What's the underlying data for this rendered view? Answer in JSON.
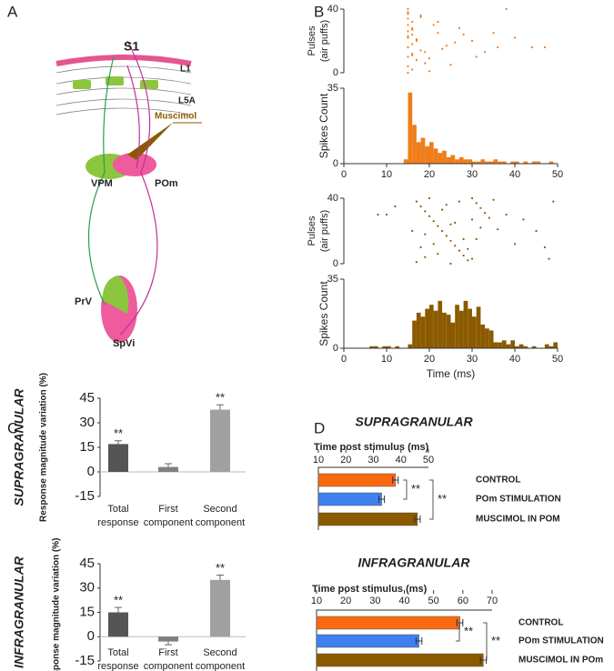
{
  "panel_labels": [
    "A",
    "B",
    "C",
    "D"
  ],
  "diagram": {
    "title": "S1",
    "layers": [
      "L1",
      "L5A"
    ],
    "drug": "Muscimol",
    "nuclei": [
      "VPM",
      "POm",
      "PrV",
      "SpVi"
    ]
  },
  "chart_data": [
    {
      "type": "scatter",
      "ylabel": [
        "Pulses",
        "(air puffs)"
      ],
      "x": [
        15,
        15,
        15,
        16,
        15,
        16,
        15,
        16,
        15,
        17,
        16,
        15,
        18,
        16,
        15,
        17,
        19,
        15,
        16,
        20,
        15,
        18,
        21,
        16,
        22,
        15,
        17,
        24,
        19,
        26,
        16,
        23,
        28,
        20,
        30,
        25,
        33,
        18,
        36,
        27,
        40,
        22,
        44,
        31,
        47,
        35,
        38,
        15
      ],
      "y": [
        40,
        37,
        34,
        32,
        30,
        28,
        26,
        24,
        22,
        20,
        18,
        16,
        14,
        12,
        10,
        8,
        6,
        4,
        2,
        1,
        38,
        35,
        30,
        27,
        25,
        23,
        21,
        17,
        13,
        19,
        11,
        15,
        24,
        9,
        20,
        5,
        13,
        36,
        16,
        28,
        22,
        32,
        16,
        10,
        16,
        25,
        40,
        0
      ],
      "color": "#f07d1a",
      "xlim": [
        0,
        50
      ],
      "ylim": [
        0,
        40
      ],
      "yticks": [
        0,
        40
      ]
    },
    {
      "type": "histogram",
      "ylabel": "Spikes Count",
      "bins": [
        0,
        1,
        2,
        3,
        4,
        5,
        6,
        7,
        8,
        9,
        10,
        11,
        12,
        13,
        14,
        15,
        16,
        17,
        18,
        19,
        20,
        21,
        22,
        23,
        24,
        25,
        26,
        27,
        28,
        29,
        30,
        31,
        32,
        33,
        34,
        35,
        36,
        37,
        38,
        39,
        40,
        41,
        42,
        43,
        44,
        45,
        46,
        47,
        48,
        49,
        50
      ],
      "counts": [
        0,
        0,
        0,
        0,
        0,
        0,
        0,
        0,
        0,
        0,
        0,
        0,
        0,
        0,
        2,
        33,
        18,
        10,
        12,
        8,
        10,
        7,
        5,
        6,
        3,
        4,
        2,
        3,
        2,
        2,
        1,
        1,
        2,
        1,
        1,
        2,
        1,
        1,
        0,
        1,
        1,
        0,
        1,
        0,
        1,
        1,
        0,
        0,
        1,
        0
      ],
      "color": "#f07d1a",
      "xlim": [
        0,
        50
      ],
      "ylim": [
        0,
        35
      ],
      "yticks": [
        0,
        35
      ],
      "xticks": [
        0,
        10,
        20,
        30,
        40,
        50
      ]
    },
    {
      "type": "scatter",
      "ylabel": [
        "Pulses",
        "(air puffs)"
      ],
      "x": [
        8,
        10,
        17,
        18,
        19,
        20,
        21,
        22,
        23,
        24,
        25,
        26,
        27,
        28,
        29,
        30,
        31,
        32,
        33,
        34,
        16,
        18,
        20,
        22,
        24,
        26,
        28,
        30,
        32,
        35,
        17,
        19,
        21,
        23,
        25,
        27,
        29,
        31,
        36,
        38,
        40,
        42,
        45,
        47,
        49,
        48,
        12,
        19,
        25,
        30
      ],
      "y": [
        30,
        30,
        38,
        35,
        32,
        29,
        26,
        23,
        20,
        17,
        14,
        11,
        8,
        5,
        2,
        40,
        37,
        34,
        31,
        28,
        20,
        10,
        40,
        6,
        36,
        25,
        15,
        3,
        22,
        39,
        1,
        18,
        12,
        33,
        24,
        38,
        9,
        15,
        21,
        30,
        12,
        27,
        20,
        10,
        38,
        3,
        35,
        4,
        0,
        27
      ],
      "color": "#8b5a00",
      "xlim": [
        0,
        50
      ],
      "ylim": [
        0,
        40
      ],
      "yticks": [
        0,
        40
      ]
    },
    {
      "type": "histogram",
      "ylabel": "Spikes Count",
      "xlabel": "Time (ms)",
      "bins": [
        0,
        1,
        2,
        3,
        4,
        5,
        6,
        7,
        8,
        9,
        10,
        11,
        12,
        13,
        14,
        15,
        16,
        17,
        18,
        19,
        20,
        21,
        22,
        23,
        24,
        25,
        26,
        27,
        28,
        29,
        30,
        31,
        32,
        33,
        34,
        35,
        36,
        37,
        38,
        39,
        40,
        41,
        42,
        43,
        44,
        45,
        46,
        47,
        48,
        49,
        50
      ],
      "counts": [
        0,
        0,
        0,
        0,
        0,
        0,
        1,
        1,
        0,
        1,
        1,
        0,
        1,
        0,
        0,
        2,
        14,
        18,
        16,
        20,
        22,
        19,
        24,
        18,
        17,
        13,
        22,
        19,
        24,
        20,
        16,
        21,
        12,
        10,
        9,
        3,
        3,
        4,
        2,
        4,
        1,
        2,
        1,
        0,
        1,
        0,
        0,
        2,
        1,
        3
      ],
      "color": "#8b5a00",
      "xlim": [
        0,
        50
      ],
      "ylim": [
        0,
        35
      ],
      "yticks": [
        0,
        35
      ],
      "xticks": [
        0,
        10,
        20,
        30,
        40,
        50
      ]
    },
    {
      "type": "bar",
      "title": "SUPRAGRANULAR",
      "ylabel": "Response magnitude variation (%)",
      "categories": [
        [
          "Total",
          "response"
        ],
        [
          "First",
          "component"
        ],
        [
          "Second",
          "component"
        ]
      ],
      "values": [
        17,
        3,
        38
      ],
      "errors": [
        2,
        2,
        3
      ],
      "colors": [
        "#555555",
        "#808080",
        "#a0a0a0"
      ],
      "significance": [
        "**",
        null,
        "**"
      ],
      "ylim": [
        -15,
        45
      ],
      "yticks": [
        -15,
        0,
        15,
        30,
        45
      ]
    },
    {
      "type": "bar",
      "title": "INFRAGRANULAR",
      "ylabel": "Response magnitude variation (%)",
      "categories": [
        [
          "Total",
          "response"
        ],
        [
          "First",
          "component"
        ],
        [
          "Second",
          "component"
        ]
      ],
      "values": [
        15,
        -3,
        35
      ],
      "errors": [
        3,
        2,
        3
      ],
      "colors": [
        "#555555",
        "#808080",
        "#a0a0a0"
      ],
      "significance": [
        "**",
        null,
        "**"
      ],
      "ylim": [
        -15,
        45
      ],
      "yticks": [
        -15,
        0,
        15,
        30,
        45
      ]
    },
    {
      "type": "hbar",
      "title": "SUPRAGRANULAR",
      "xlabel": "Time post stimulus (ms)",
      "categories": [
        "CONTROL",
        "POm STIMULATION",
        "MUSCIMOL IN POM"
      ],
      "values": [
        38,
        33,
        46
      ],
      "errors": [
        1,
        1,
        1
      ],
      "colors": [
        "#f96a10",
        "#3f7ff0",
        "#8b5a00"
      ],
      "comparisons": [
        {
          "pair": [
            0,
            1
          ],
          "label": "**"
        },
        {
          "pair": [
            0,
            2
          ],
          "label": "**"
        }
      ],
      "xlim": [
        10,
        50
      ],
      "xticks": [
        10,
        20,
        30,
        40,
        50
      ]
    },
    {
      "type": "hbar",
      "title": "INFRAGRANULAR",
      "xlabel": "Time post stimulus (ms)",
      "categories": [
        "CONTROL",
        "POm STIMULATION",
        "MUSCIMOL IN POm"
      ],
      "values": [
        59,
        45,
        67
      ],
      "errors": [
        1,
        1,
        1
      ],
      "colors": [
        "#f96a10",
        "#3f7ff0",
        "#8b5a00"
      ],
      "comparisons": [
        {
          "pair": [
            0,
            1
          ],
          "label": "**"
        },
        {
          "pair": [
            0,
            2
          ],
          "label": "**"
        }
      ],
      "xlim": [
        10,
        70
      ],
      "xticks": [
        10,
        20,
        30,
        40,
        50,
        60,
        70
      ]
    }
  ]
}
